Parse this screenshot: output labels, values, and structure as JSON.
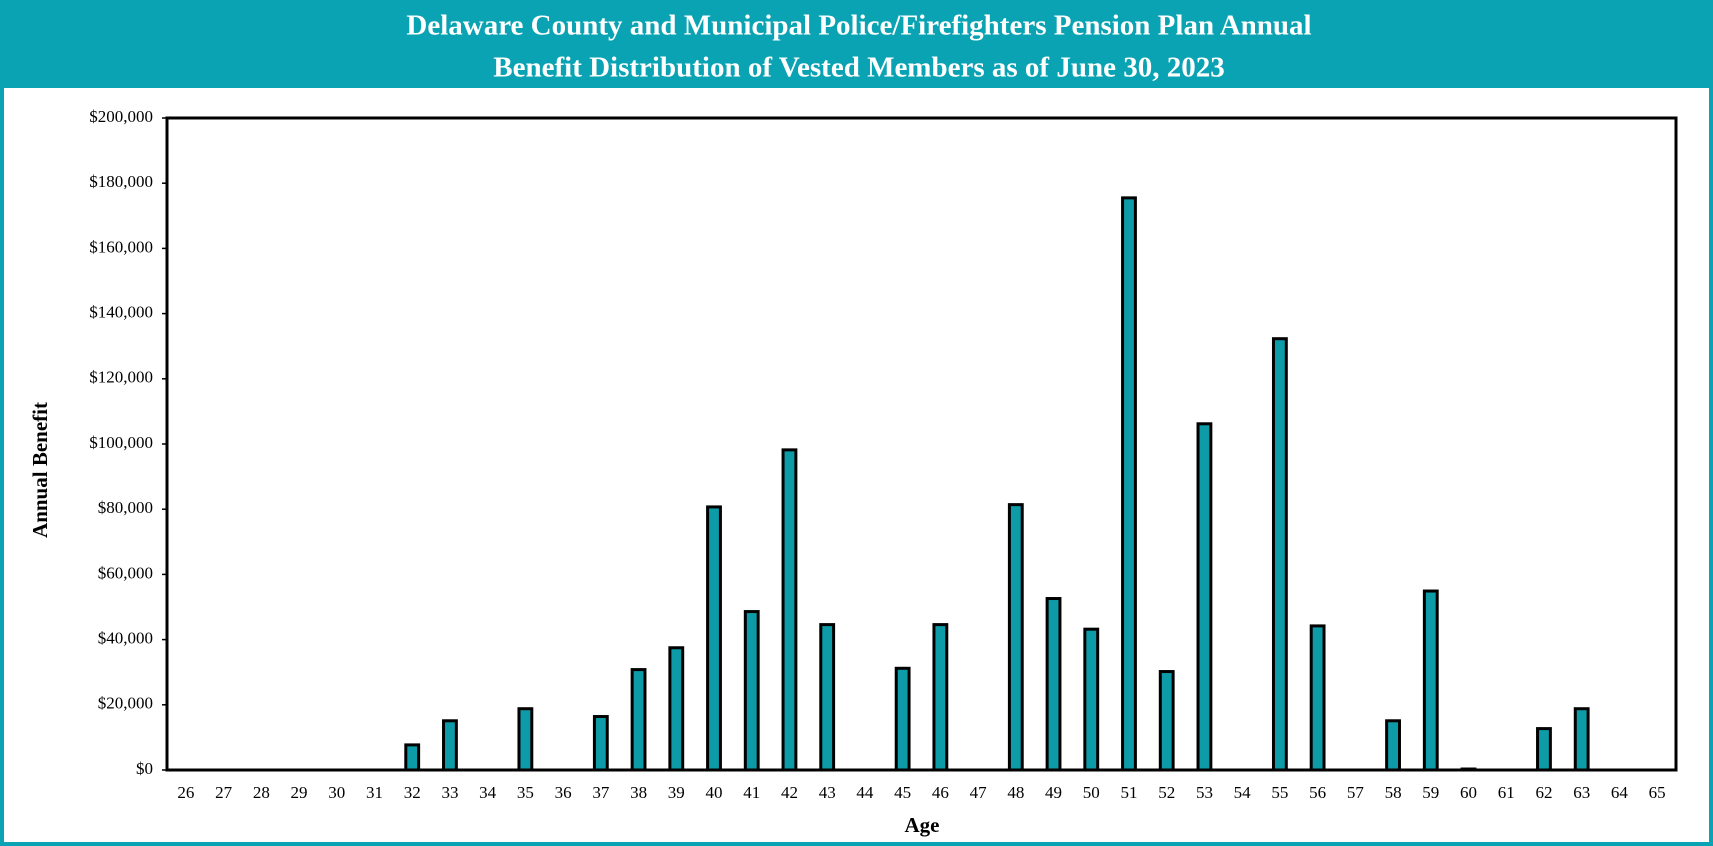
{
  "chart_data": {
    "type": "bar",
    "title_lines": [
      "Delaware County and Municipal Police/Firefighters Pension Plan Annual",
      "Benefit Distribution of Vested Members as of June 30, 2023"
    ],
    "x_label": "Age",
    "y_label": "Annual Benefit",
    "categories": [
      "26",
      "27",
      "28",
      "29",
      "30",
      "31",
      "32",
      "33",
      "34",
      "35",
      "36",
      "37",
      "38",
      "39",
      "40",
      "41",
      "42",
      "43",
      "44",
      "45",
      "46",
      "47",
      "48",
      "49",
      "50",
      "51",
      "52",
      "53",
      "54",
      "55",
      "56",
      "57",
      "58",
      "59",
      "60",
      "61",
      "62",
      "63",
      "64",
      "65"
    ],
    "values": [
      0,
      0,
      0,
      0,
      0,
      0,
      7700,
      15100,
      0,
      18800,
      0,
      16400,
      30800,
      37500,
      80700,
      48600,
      98200,
      44600,
      0,
      31200,
      44600,
      0,
      81400,
      52600,
      43200,
      175500,
      30200,
      106200,
      0,
      132300,
      44200,
      0,
      15100,
      54900,
      300,
      0,
      12700,
      18800,
      0,
      0
    ],
    "color": "#0e9ba8",
    "ylim": [
      0,
      200000
    ],
    "yticks": [
      {
        "value": 0,
        "label": "$0"
      },
      {
        "value": 20000,
        "label": "$20,000"
      },
      {
        "value": 40000,
        "label": "$40,000"
      },
      {
        "value": 60000,
        "label": "$60,000"
      },
      {
        "value": 80000,
        "label": "$80,000"
      },
      {
        "value": 100000,
        "label": "$100,000"
      },
      {
        "value": 120000,
        "label": "$120,000"
      },
      {
        "value": 140000,
        "label": "$140,000"
      },
      {
        "value": 160000,
        "label": "$160,000"
      },
      {
        "value": 180000,
        "label": "$180,000"
      },
      {
        "value": 200000,
        "label": "$200,000"
      }
    ],
    "grid": false
  }
}
